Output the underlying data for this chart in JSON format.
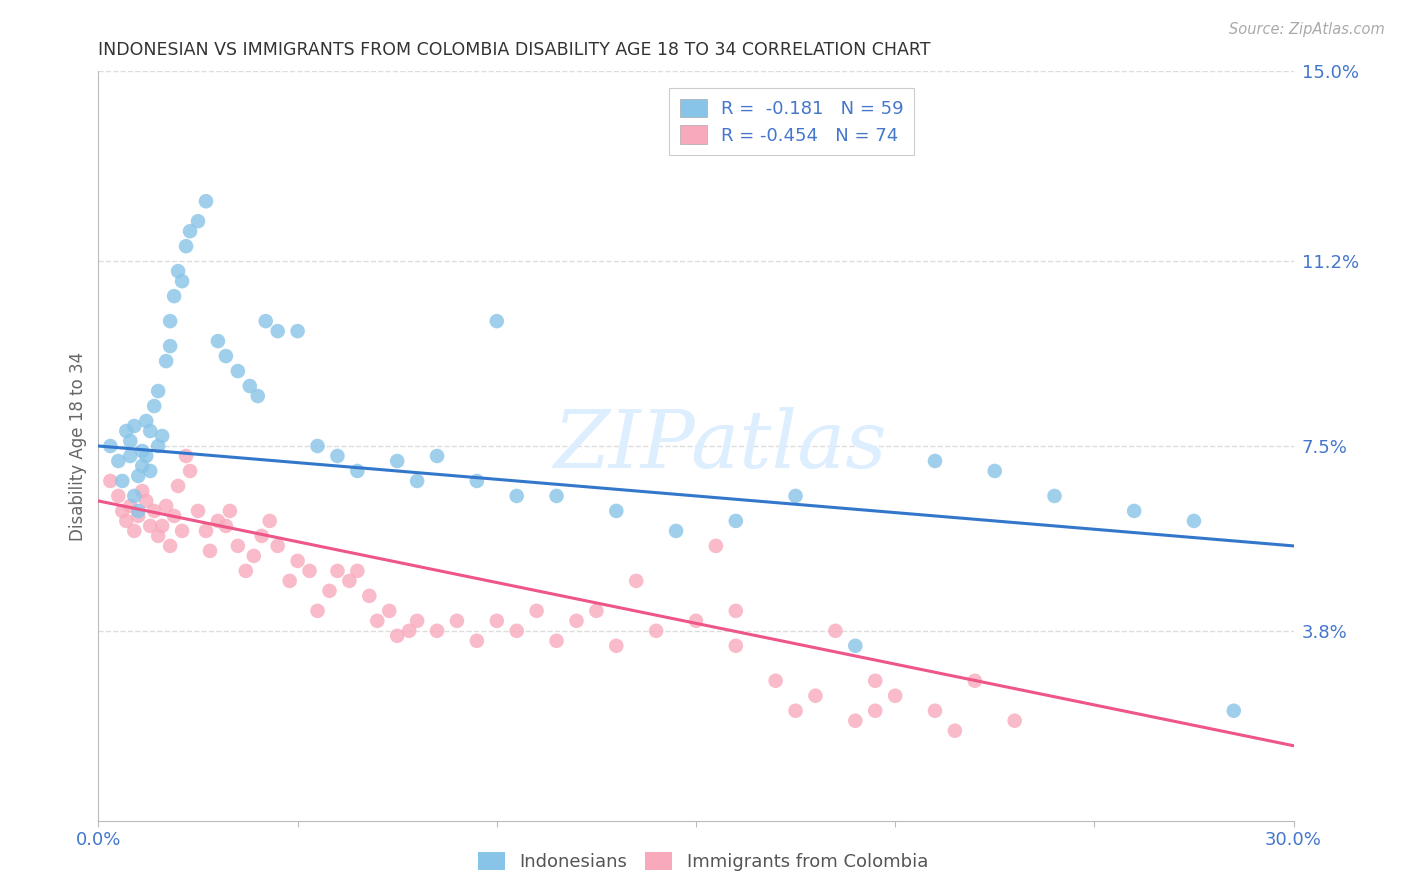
{
  "title": "INDONESIAN VS IMMIGRANTS FROM COLOMBIA DISABILITY AGE 18 TO 34 CORRELATION CHART",
  "source": "Source: ZipAtlas.com",
  "ylabel": "Disability Age 18 to 34",
  "x_min": 0.0,
  "x_max": 0.3,
  "y_min": 0.0,
  "y_max": 0.15,
  "y_tick_values_right": [
    0.15,
    0.112,
    0.075,
    0.038
  ],
  "legend_label1": "Indonesians",
  "legend_label2": "Immigrants from Colombia",
  "r1": "-0.181",
  "n1": "59",
  "r2": "-0.454",
  "n2": "74",
  "color_blue": "#88c4e8",
  "color_pink": "#f8aabc",
  "line_color_blue": "#3377cc",
  "line_color_pink": "#ee5588",
  "title_color": "#333333",
  "axis_label_color": "#4477cc",
  "watermark_color": "#ddeeff",
  "background_color": "#ffffff",
  "grid_color": "#dddddd",
  "blue_line_y0": 0.075,
  "blue_line_y1": 0.055,
  "pink_line_y0": 0.064,
  "pink_line_y1": 0.015,
  "indonesian_x": [
    0.003,
    0.005,
    0.006,
    0.007,
    0.008,
    0.008,
    0.009,
    0.009,
    0.01,
    0.01,
    0.011,
    0.011,
    0.012,
    0.012,
    0.013,
    0.013,
    0.014,
    0.015,
    0.015,
    0.016,
    0.017,
    0.018,
    0.018,
    0.019,
    0.02,
    0.021,
    0.022,
    0.023,
    0.025,
    0.027,
    0.03,
    0.032,
    0.035,
    0.038,
    0.04,
    0.042,
    0.045,
    0.05,
    0.055,
    0.06,
    0.065,
    0.075,
    0.08,
    0.085,
    0.095,
    0.1,
    0.105,
    0.115,
    0.13,
    0.145,
    0.16,
    0.175,
    0.19,
    0.21,
    0.225,
    0.24,
    0.26,
    0.275,
    0.285
  ],
  "indonesian_y": [
    0.075,
    0.072,
    0.068,
    0.078,
    0.073,
    0.076,
    0.079,
    0.065,
    0.062,
    0.069,
    0.071,
    0.074,
    0.08,
    0.073,
    0.078,
    0.07,
    0.083,
    0.075,
    0.086,
    0.077,
    0.092,
    0.095,
    0.1,
    0.105,
    0.11,
    0.108,
    0.115,
    0.118,
    0.12,
    0.124,
    0.096,
    0.093,
    0.09,
    0.087,
    0.085,
    0.1,
    0.098,
    0.098,
    0.075,
    0.073,
    0.07,
    0.072,
    0.068,
    0.073,
    0.068,
    0.1,
    0.065,
    0.065,
    0.062,
    0.058,
    0.06,
    0.065,
    0.035,
    0.072,
    0.07,
    0.065,
    0.062,
    0.06,
    0.022
  ],
  "colombia_x": [
    0.003,
    0.005,
    0.006,
    0.007,
    0.008,
    0.009,
    0.01,
    0.011,
    0.012,
    0.013,
    0.014,
    0.015,
    0.016,
    0.017,
    0.018,
    0.019,
    0.02,
    0.021,
    0.022,
    0.023,
    0.025,
    0.027,
    0.028,
    0.03,
    0.032,
    0.033,
    0.035,
    0.037,
    0.039,
    0.041,
    0.043,
    0.045,
    0.048,
    0.05,
    0.053,
    0.055,
    0.058,
    0.06,
    0.063,
    0.065,
    0.068,
    0.07,
    0.073,
    0.075,
    0.078,
    0.08,
    0.085,
    0.09,
    0.095,
    0.1,
    0.105,
    0.11,
    0.115,
    0.12,
    0.125,
    0.13,
    0.14,
    0.15,
    0.16,
    0.17,
    0.18,
    0.19,
    0.2,
    0.21,
    0.22,
    0.23,
    0.195,
    0.175,
    0.155,
    0.135,
    0.185,
    0.16,
    0.195,
    0.215
  ],
  "colombia_y": [
    0.068,
    0.065,
    0.062,
    0.06,
    0.063,
    0.058,
    0.061,
    0.066,
    0.064,
    0.059,
    0.062,
    0.057,
    0.059,
    0.063,
    0.055,
    0.061,
    0.067,
    0.058,
    0.073,
    0.07,
    0.062,
    0.058,
    0.054,
    0.06,
    0.059,
    0.062,
    0.055,
    0.05,
    0.053,
    0.057,
    0.06,
    0.055,
    0.048,
    0.052,
    0.05,
    0.042,
    0.046,
    0.05,
    0.048,
    0.05,
    0.045,
    0.04,
    0.042,
    0.037,
    0.038,
    0.04,
    0.038,
    0.04,
    0.036,
    0.04,
    0.038,
    0.042,
    0.036,
    0.04,
    0.042,
    0.035,
    0.038,
    0.04,
    0.042,
    0.028,
    0.025,
    0.02,
    0.025,
    0.022,
    0.028,
    0.02,
    0.028,
    0.022,
    0.055,
    0.048,
    0.038,
    0.035,
    0.022,
    0.018
  ]
}
